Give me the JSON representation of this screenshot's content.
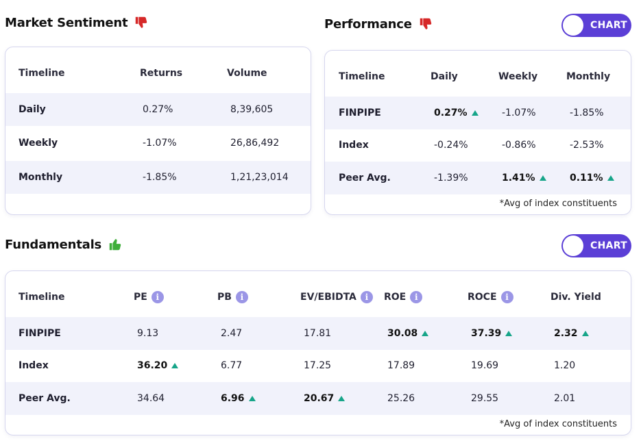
{
  "market_sentiment": {
    "title": "Market Sentiment",
    "sentiment_icon": "thumbs-down-icon",
    "headers": [
      "Timeline",
      "Returns",
      "Volume"
    ],
    "rows": [
      {
        "label": "Daily",
        "returns": "0.27%",
        "volume": "8,39,605"
      },
      {
        "label": "Weekly",
        "returns": "-1.07%",
        "volume": "26,86,492"
      },
      {
        "label": "Monthly",
        "returns": "-1.85%",
        "volume": "1,21,23,014"
      }
    ]
  },
  "performance": {
    "title": "Performance",
    "sentiment_icon": "thumbs-down-icon",
    "chart_toggle_label": "CHART",
    "headers": [
      "Timeline",
      "Daily",
      "Weekly",
      "Monthly"
    ],
    "rows": [
      {
        "label": "FINPIPE",
        "daily": "0.27%",
        "weekly": "-1.07%",
        "monthly": "-1.85%"
      },
      {
        "label": "Index",
        "daily": "-0.24%",
        "weekly": "-0.86%",
        "monthly": "-2.53%"
      },
      {
        "label": "Peer Avg.",
        "daily": "-1.39%",
        "weekly": "1.41%",
        "monthly": "0.11%"
      }
    ],
    "footnote": "*Avg of index constituents"
  },
  "fundamentals": {
    "title": "Fundamentals",
    "sentiment_icon": "thumbs-up-icon",
    "chart_toggle_label": "CHART",
    "headers": [
      "Timeline",
      "PE",
      "PB",
      "EV/EBIDTA",
      "ROE",
      "ROCE",
      "Div. Yield"
    ],
    "info_icon": "i",
    "rows": [
      {
        "label": "FINPIPE",
        "pe": "9.13",
        "pb": "2.47",
        "ev": "17.81",
        "roe": "30.08",
        "roce": "37.39",
        "div": "2.32"
      },
      {
        "label": "Index",
        "pe": "36.20",
        "pb": "6.77",
        "ev": "17.25",
        "roe": "17.89",
        "roce": "19.69",
        "div": "1.20"
      },
      {
        "label": "Peer Avg.",
        "pe": "34.64",
        "pb": "6.96",
        "ev": "20.67",
        "roe": "25.26",
        "roce": "29.55",
        "div": "2.01"
      }
    ],
    "footnote": "*Avg of index constituents"
  },
  "colors": {
    "accent": "#5b3fd6",
    "up_arrow": "#17a589",
    "thumb_down": "#d62828",
    "thumb_up": "#3fae3a",
    "row_alt": "#f1f2fb"
  }
}
